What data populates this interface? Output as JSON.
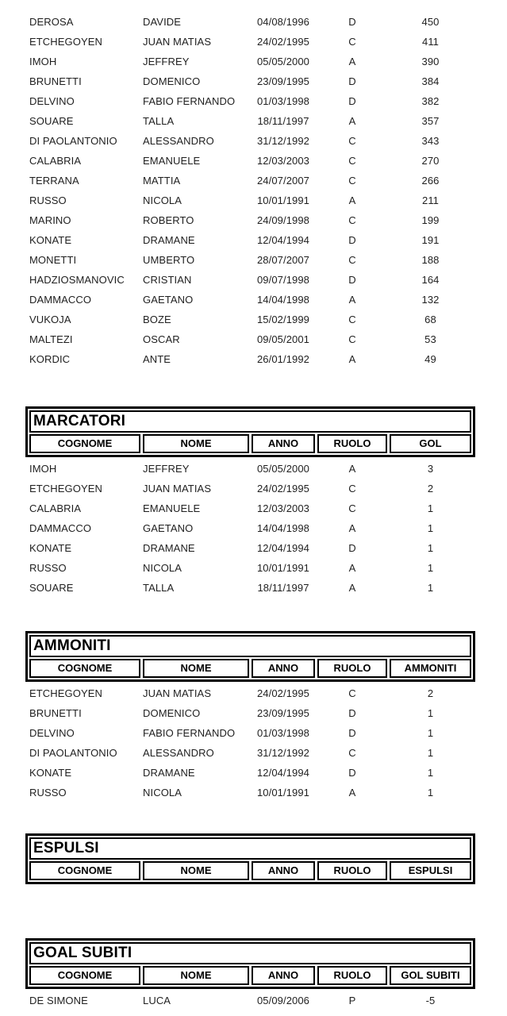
{
  "column_keys": [
    "cognome",
    "nome",
    "anno",
    "ruolo",
    "value"
  ],
  "sections": [
    {
      "id": "continuation",
      "title": null,
      "headers": null,
      "rows": [
        [
          "DEROSA",
          "DAVIDE",
          "04/08/1996",
          "D",
          "450"
        ],
        [
          "ETCHEGOYEN",
          "JUAN MATIAS",
          "24/02/1995",
          "C",
          "411"
        ],
        [
          "IMOH",
          "JEFFREY",
          "05/05/2000",
          "A",
          "390"
        ],
        [
          "BRUNETTI",
          "DOMENICO",
          "23/09/1995",
          "D",
          "384"
        ],
        [
          "DELVINO",
          "FABIO FERNANDO",
          "01/03/1998",
          "D",
          "382"
        ],
        [
          "SOUARE",
          "TALLA",
          "18/11/1997",
          "A",
          "357"
        ],
        [
          "DI PAOLANTONIO",
          "ALESSANDRO",
          "31/12/1992",
          "C",
          "343"
        ],
        [
          "CALABRIA",
          "EMANUELE",
          "12/03/2003",
          "C",
          "270"
        ],
        [
          "TERRANA",
          "MATTIA",
          "24/07/2007",
          "C",
          "266"
        ],
        [
          "RUSSO",
          "NICOLA",
          "10/01/1991",
          "A",
          "211"
        ],
        [
          "MARINO",
          "ROBERTO",
          "24/09/1998",
          "C",
          "199"
        ],
        [
          "KONATE",
          "DRAMANE",
          "12/04/1994",
          "D",
          "191"
        ],
        [
          "MONETTI",
          "UMBERTO",
          "28/07/2007",
          "C",
          "188"
        ],
        [
          "HADZIOSMANOVIC",
          "CRISTIAN",
          "09/07/1998",
          "D",
          "164"
        ],
        [
          "DAMMACCO",
          "GAETANO",
          "14/04/1998",
          "A",
          "132"
        ],
        [
          "VUKOJA",
          "BOZE",
          "15/02/1999",
          "C",
          "68"
        ],
        [
          "MALTEZI",
          "OSCAR",
          "09/05/2001",
          "C",
          "53"
        ],
        [
          "KORDIC",
          "ANTE",
          "26/01/1992",
          "A",
          "49"
        ]
      ]
    },
    {
      "id": "marcatori",
      "title": "MARCATORI",
      "headers": [
        "COGNOME",
        "NOME",
        "ANNO",
        "RUOLO",
        "GOL"
      ],
      "rows": [
        [
          "IMOH",
          "JEFFREY",
          "05/05/2000",
          "A",
          "3"
        ],
        [
          "ETCHEGOYEN",
          "JUAN MATIAS",
          "24/02/1995",
          "C",
          "2"
        ],
        [
          "CALABRIA",
          "EMANUELE",
          "12/03/2003",
          "C",
          "1"
        ],
        [
          "DAMMACCO",
          "GAETANO",
          "14/04/1998",
          "A",
          "1"
        ],
        [
          "KONATE",
          "DRAMANE",
          "12/04/1994",
          "D",
          "1"
        ],
        [
          "RUSSO",
          "NICOLA",
          "10/01/1991",
          "A",
          "1"
        ],
        [
          "SOUARE",
          "TALLA",
          "18/11/1997",
          "A",
          "1"
        ]
      ]
    },
    {
      "id": "ammoniti",
      "title": "AMMONITI",
      "headers": [
        "COGNOME",
        "NOME",
        "ANNO",
        "RUOLO",
        "AMMONITI"
      ],
      "rows": [
        [
          "ETCHEGOYEN",
          "JUAN MATIAS",
          "24/02/1995",
          "C",
          "2"
        ],
        [
          "BRUNETTI",
          "DOMENICO",
          "23/09/1995",
          "D",
          "1"
        ],
        [
          "DELVINO",
          "FABIO FERNANDO",
          "01/03/1998",
          "D",
          "1"
        ],
        [
          "DI PAOLANTONIO",
          "ALESSANDRO",
          "31/12/1992",
          "C",
          "1"
        ],
        [
          "KONATE",
          "DRAMANE",
          "12/04/1994",
          "D",
          "1"
        ],
        [
          "RUSSO",
          "NICOLA",
          "10/01/1991",
          "A",
          "1"
        ]
      ]
    },
    {
      "id": "espulsi",
      "title": "ESPULSI",
      "headers": [
        "COGNOME",
        "NOME",
        "ANNO",
        "RUOLO",
        "ESPULSI"
      ],
      "rows": []
    },
    {
      "id": "goalsubiti",
      "title": "GOAL SUBITI",
      "headers": [
        "COGNOME",
        "NOME",
        "ANNO",
        "RUOLO",
        "GOL SUBITI"
      ],
      "rows": [
        [
          "DE SIMONE",
          "LUCA",
          "05/09/2006",
          "P",
          "-5"
        ]
      ]
    }
  ],
  "colors": {
    "border": "#000000",
    "text": "#1f1f1f",
    "background": "#ffffff"
  }
}
